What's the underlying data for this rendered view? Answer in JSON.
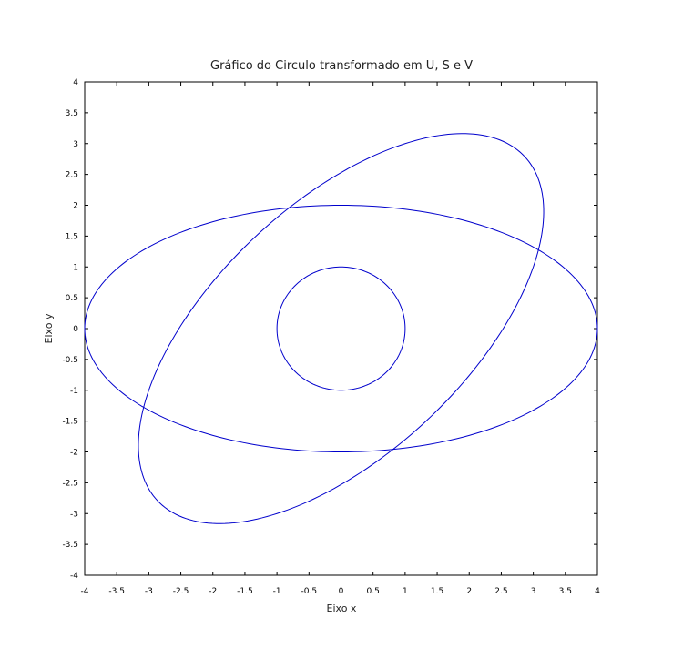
{
  "chart_data": {
    "type": "line",
    "title": "Gráfico do Circulo transformado em U, S e V",
    "xlabel": "Eixo x",
    "ylabel": "Eixo y",
    "xlim": [
      -4,
      4
    ],
    "ylim": [
      -4,
      4
    ],
    "x_ticks": [
      "-4",
      "-3.5",
      "-3",
      "-2.5",
      "-2",
      "-1.5",
      "-1",
      "-0.5",
      "0",
      "0.5",
      "1",
      "1.5",
      "2",
      "2.5",
      "3",
      "3.5",
      "4"
    ],
    "y_ticks": [
      "-4",
      "-3.5",
      "-3",
      "-2.5",
      "-2",
      "-1.5",
      "-1",
      "-0.5",
      "0",
      "0.5",
      "1",
      "1.5",
      "2",
      "2.5",
      "3",
      "3.5",
      "4"
    ],
    "grid": false,
    "line_color": "#0000cc",
    "series": [
      {
        "shape": "circle",
        "center": [
          0,
          0
        ],
        "radius": 1
      },
      {
        "shape": "ellipse",
        "center": [
          0,
          0
        ],
        "semi_axes": [
          4,
          2
        ],
        "rotation_deg": 0
      },
      {
        "shape": "ellipse",
        "center": [
          0,
          0
        ],
        "semi_axes": [
          4,
          2
        ],
        "rotation_deg": 45
      }
    ]
  }
}
